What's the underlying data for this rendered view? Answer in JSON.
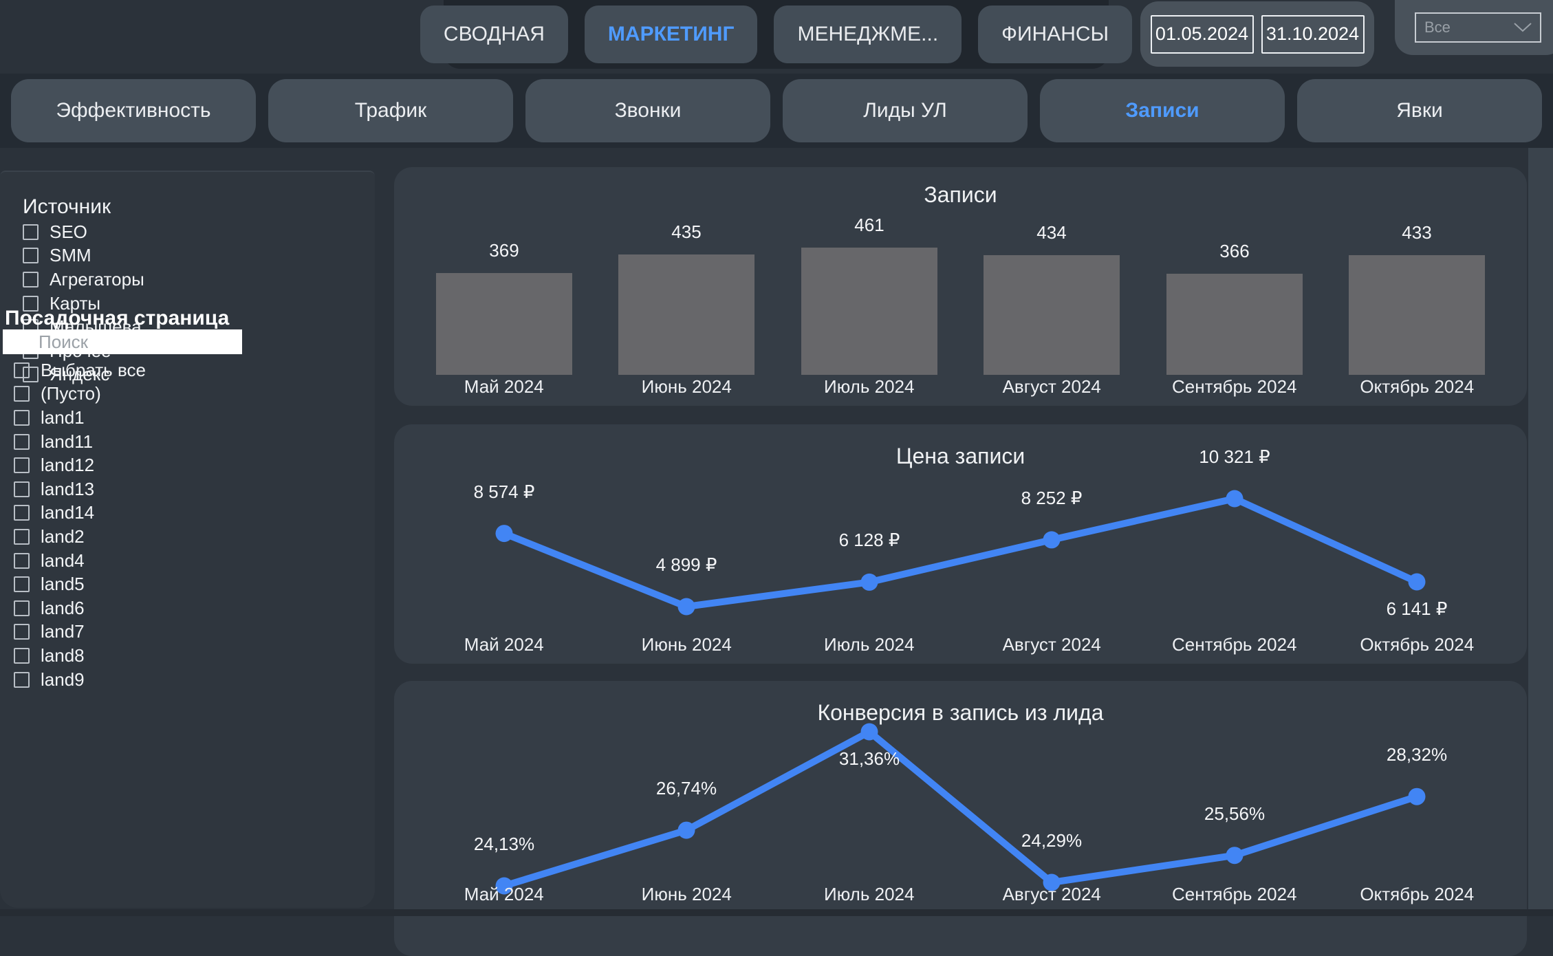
{
  "topbar": {
    "tabs": [
      {
        "label": "СВОДНАЯ",
        "active": false
      },
      {
        "label": "МАРКЕТИНГ",
        "active": true
      },
      {
        "label": "МЕНЕДЖМЕ...",
        "active": false
      },
      {
        "label": "ФИНАНСЫ",
        "active": false
      }
    ],
    "date_from": "01.05.2024",
    "date_to": "31.10.2024",
    "filter_dropdown": {
      "value": "Все"
    }
  },
  "nav_tabs": [
    {
      "label": "Эффективность",
      "active": false
    },
    {
      "label": "Трафик",
      "active": false
    },
    {
      "label": "Звонки",
      "active": false
    },
    {
      "label": "Лиды УЛ",
      "active": false
    },
    {
      "label": "Записи",
      "active": true
    },
    {
      "label": "Явки",
      "active": false
    }
  ],
  "sidebar": {
    "source_filter": {
      "title": "Источник",
      "options": [
        "SEO",
        "SMM",
        "Агрегаторы",
        "Карты",
        "Малышева",
        "Прочее",
        "Яндекс"
      ]
    },
    "landing_filter": {
      "title": "Посадочная страница",
      "search_placeholder": "Поиск",
      "options": [
        "Выбрать все",
        "(Пусто)",
        "land1",
        "land11",
        "land12",
        "land13",
        "land14",
        "land2",
        "land4",
        "land5",
        "land6",
        "land7",
        "land8",
        "land9"
      ]
    }
  },
  "chart_data": [
    {
      "type": "bar",
      "title": "Записи",
      "categories": [
        "Май 2024",
        "Июнь 2024",
        "Июль 2024",
        "Август 2024",
        "Сентябрь 2024",
        "Октябрь 2024"
      ],
      "values": [
        369,
        435,
        461,
        434,
        366,
        433
      ],
      "value_labels": [
        "369",
        "435",
        "461",
        "434",
        "366",
        "433"
      ],
      "ylim": [
        0,
        461
      ],
      "bar_color": "#67676a",
      "grid": false,
      "legend": "none"
    },
    {
      "type": "line",
      "title": "Цена записи",
      "categories": [
        "Май 2024",
        "Июнь 2024",
        "Июль 2024",
        "Август 2024",
        "Сентябрь 2024",
        "Октябрь 2024"
      ],
      "values": [
        8574,
        4899,
        6128,
        8252,
        10321,
        6141
      ],
      "value_labels": [
        "8 574 ₽",
        "4 899 ₽",
        "6 128 ₽",
        "8 252 ₽",
        "10 321 ₽",
        "6 141 ₽"
      ],
      "label_below_indices": [
        5
      ],
      "line_color": "#4285f4",
      "grid": false,
      "legend": "none"
    },
    {
      "type": "line",
      "title": "Конверсия в запись из лида",
      "categories": [
        "Май 2024",
        "Июнь 2024",
        "Июль 2024",
        "Август 2024",
        "Сентябрь 2024",
        "Октябрь 2024"
      ],
      "values": [
        24.13,
        26.74,
        31.36,
        24.29,
        25.56,
        28.32
      ],
      "value_labels": [
        "24,13%",
        "26,74%",
        "31,36%",
        "24,29%",
        "25,56%",
        "28,32%"
      ],
      "label_below_indices": [
        2
      ],
      "line_color": "#4285f4",
      "grid": false,
      "legend": "none"
    }
  ],
  "colors": {
    "accent_blue": "#4f9bff",
    "line_blue": "#4285f4",
    "bar_gray": "#67676a",
    "panel_bg": "#353d46",
    "sidebar_bg": "#2f363e",
    "page_bg": "#2b323a"
  }
}
